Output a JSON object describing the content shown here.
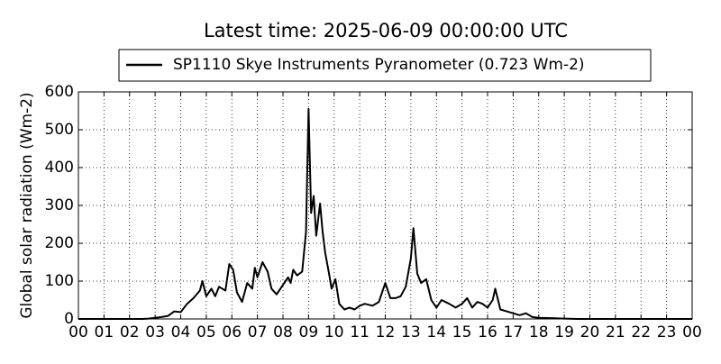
{
  "chart_data": {
    "type": "line",
    "title": "Latest time: 2025-06-09 00:00:00 UTC",
    "y_label": "Global solar radiation (Wm-2)",
    "legend_position": "top",
    "grid": true,
    "xlim": [
      0,
      24
    ],
    "ylim": [
      0,
      600
    ],
    "yticks": [
      0,
      100,
      200,
      300,
      400,
      500,
      600
    ],
    "xticks": [
      {
        "value": 0,
        "label": "00"
      },
      {
        "value": 1,
        "label": "01"
      },
      {
        "value": 2,
        "label": "02"
      },
      {
        "value": 3,
        "label": "03"
      },
      {
        "value": 4,
        "label": "04"
      },
      {
        "value": 5,
        "label": "05"
      },
      {
        "value": 6,
        "label": "06"
      },
      {
        "value": 7,
        "label": "07"
      },
      {
        "value": 8,
        "label": "08"
      },
      {
        "value": 9,
        "label": "09"
      },
      {
        "value": 10,
        "label": "10"
      },
      {
        "value": 11,
        "label": "11"
      },
      {
        "value": 12,
        "label": "12"
      },
      {
        "value": 13,
        "label": "13"
      },
      {
        "value": 14,
        "label": "14"
      },
      {
        "value": 15,
        "label": "15"
      },
      {
        "value": 16,
        "label": "16"
      },
      {
        "value": 17,
        "label": "17"
      },
      {
        "value": 18,
        "label": "18"
      },
      {
        "value": 19,
        "label": "19"
      },
      {
        "value": 20,
        "label": "20"
      },
      {
        "value": 21,
        "label": "21"
      },
      {
        "value": 22,
        "label": "22"
      },
      {
        "value": 23,
        "label": "23"
      },
      {
        "value": 24,
        "label": "00"
      }
    ],
    "x": [
      0,
      1,
      2,
      2.5,
      2.75,
      3,
      3.25,
      3.5,
      3.75,
      4,
      4.25,
      4.5,
      4.75,
      4.85,
      5,
      5.2,
      5.35,
      5.5,
      5.75,
      5.9,
      6.05,
      6.2,
      6.4,
      6.6,
      6.8,
      6.9,
      7,
      7.2,
      7.4,
      7.55,
      7.75,
      8,
      8.2,
      8.3,
      8.4,
      8.55,
      8.75,
      8.9,
      9,
      9.1,
      9.2,
      9.3,
      9.45,
      9.55,
      9.65,
      9.8,
      9.9,
      10.05,
      10.2,
      10.4,
      10.6,
      10.8,
      11,
      11.2,
      11.5,
      11.75,
      12,
      12.2,
      12.4,
      12.6,
      12.8,
      13,
      13.1,
      13.25,
      13.4,
      13.6,
      13.8,
      14,
      14.2,
      14.5,
      14.75,
      15,
      15.2,
      15.4,
      15.6,
      15.8,
      16,
      16.2,
      16.3,
      16.5,
      16.75,
      17,
      17.25,
      17.5,
      17.75,
      18,
      18.5,
      19,
      19.5,
      24
    ],
    "series": [
      {
        "name": "SP1110 Skye Instruments Pyranometer (0.723 Wm-2)",
        "color": "#000000",
        "values": [
          0,
          0,
          0,
          0,
          1,
          3,
          5,
          8,
          20,
          18,
          40,
          55,
          75,
          100,
          60,
          80,
          60,
          85,
          75,
          145,
          130,
          70,
          45,
          95,
          80,
          135,
          110,
          150,
          125,
          80,
          65,
          90,
          110,
          95,
          130,
          115,
          125,
          230,
          555,
          280,
          325,
          220,
          305,
          230,
          175,
          120,
          80,
          105,
          40,
          25,
          30,
          25,
          35,
          40,
          35,
          45,
          95,
          55,
          55,
          60,
          85,
          160,
          240,
          120,
          95,
          105,
          50,
          30,
          50,
          40,
          30,
          40,
          55,
          30,
          45,
          40,
          30,
          50,
          80,
          25,
          20,
          15,
          10,
          15,
          5,
          3,
          2,
          1,
          0,
          0
        ]
      }
    ]
  }
}
